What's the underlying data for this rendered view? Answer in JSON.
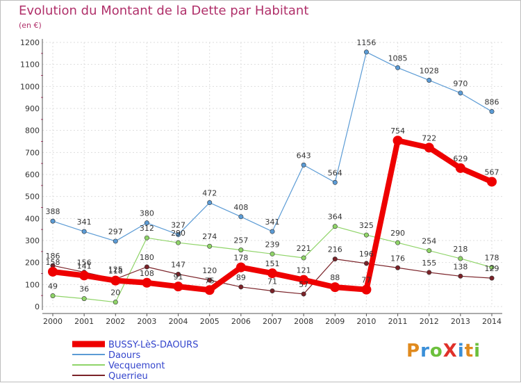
{
  "header": {
    "title": "Evolution du Montant de la Dette par Habitant",
    "unit": "(en €)"
  },
  "logo": {
    "text": "ProXiti",
    "letter_colors": [
      "#e08a1e",
      "#3a8fd8",
      "#6cc03c",
      "#e0312a",
      "#3a8fd8",
      "#e08a1e",
      "#6cc03c"
    ]
  },
  "chart_data": {
    "type": "line",
    "title": "Evolution du Montant de la Dette par Habitant",
    "ylabel": "(en €)",
    "xlabel": "",
    "x": [
      "2000",
      "2001",
      "2002",
      "2003",
      "2004",
      "2005",
      "2006",
      "2007",
      "2008",
      "2009",
      "2010",
      "2011",
      "2012",
      "2013",
      "2014"
    ],
    "ylim": [
      0,
      1200
    ],
    "yticks": [
      0,
      100,
      200,
      300,
      400,
      500,
      600,
      700,
      800,
      900,
      1000,
      1100,
      1200
    ],
    "grid": true,
    "legend_position": "bottom-left",
    "series": [
      {
        "name": "BUSSY-LèS-DAOURS",
        "color": "#ee0000",
        "highlight": true,
        "values": [
          158,
          141,
          118,
          108,
          91,
          75,
          178,
          151,
          121,
          88,
          77,
          754,
          722,
          629,
          567
        ],
        "labels": [
          "158",
          "141",
          "118",
          "108",
          "91",
          "75",
          "178",
          "151",
          "121",
          "88",
          "77",
          "754",
          "722",
          "629",
          "567"
        ]
      },
      {
        "name": "Daours",
        "color": "#5b9bd5",
        "values": [
          388,
          341,
          297,
          380,
          327,
          472,
          408,
          341,
          643,
          564,
          1156,
          1085,
          1028,
          970,
          886
        ],
        "labels": [
          "388",
          "341",
          "297",
          "380",
          "327",
          "472",
          "408",
          "341",
          "643",
          "564",
          "1156",
          "1085",
          "1028",
          "970",
          "886"
        ]
      },
      {
        "name": "Vecquemont",
        "color": "#8fd468",
        "values": [
          49,
          36,
          20,
          312,
          290,
          274,
          257,
          239,
          221,
          364,
          325,
          290,
          254,
          218,
          178
        ],
        "labels": [
          "49",
          "36",
          "20",
          "312",
          "290",
          "274",
          "257",
          "239",
          "221",
          "364",
          "325",
          "290",
          "254",
          "218",
          "178"
        ]
      },
      {
        "name": "Querrieu",
        "color": "#7a2228",
        "values": [
          186,
          156,
          125,
          180,
          147,
          120,
          89,
          71,
          57,
          216,
          196,
          176,
          155,
          138,
          129
        ],
        "labels": [
          "186",
          "156",
          "125",
          "180",
          "147",
          "120",
          "89",
          "71",
          "57",
          "216",
          "196",
          "176",
          "155",
          "138",
          "129"
        ]
      }
    ]
  }
}
